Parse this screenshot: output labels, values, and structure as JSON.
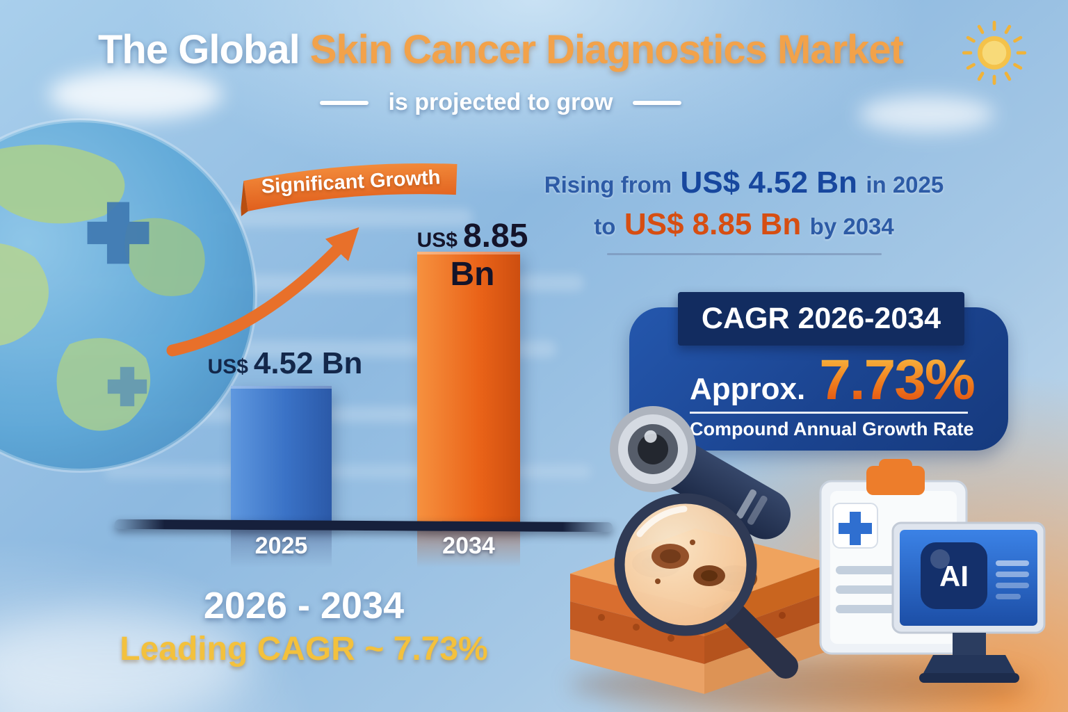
{
  "header": {
    "title_prefix": "The Global",
    "title_highlight": " Skin Cancer Diagnostics Market",
    "subtitle": "is projected to grow"
  },
  "banner": {
    "label": "Significant Growth"
  },
  "chart_data": {
    "type": "bar",
    "title": "The Global Skin Cancer Diagnostics Market is projected to grow",
    "categories": [
      "2025",
      "2034"
    ],
    "values": [
      4.52,
      8.85
    ],
    "currency": "US$",
    "value_labels": [
      "4.52 Bn",
      "8.85 Bn"
    ],
    "unit": "US$ Bn",
    "bar_colors": [
      "#3a72c6",
      "#ea6318"
    ],
    "ylim": [
      0,
      8.85
    ],
    "grid": false,
    "legend": false
  },
  "growth_statement": {
    "line1": {
      "prefix": "Rising from",
      "value": "US$ 4.52 Bn",
      "suffix": "in 2025"
    },
    "line2": {
      "prefix": "to",
      "value": "US$ 8.85 Bn",
      "suffix": "by 2034"
    }
  },
  "cagr_panel": {
    "header": "CAGR 2026-2034",
    "approx_label": "Approx.",
    "value": "7.73%",
    "caption": "Compound Annual Growth Rate"
  },
  "footer": {
    "period": "2026 - 2034",
    "leading_cagr": "Leading CAGR ~ 7.73%"
  },
  "illustrations": {
    "ai_label": "AI"
  },
  "colors": {
    "title_highlight": "#f2a24a",
    "accent_orange": "#e8641c",
    "deep_blue": "#17479e",
    "panel_blue": "#1b4490",
    "header_navy": "#122c60",
    "footer_yellow": "#f3c13d"
  }
}
